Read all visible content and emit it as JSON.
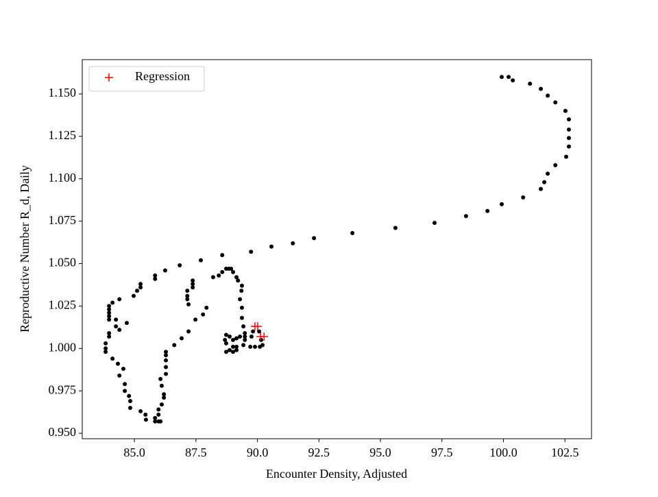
{
  "chart_data": {
    "type": "scatter",
    "xlabel": "Encounter Density, Adjusted",
    "ylabel": "Reproductive Number R_d, Daily",
    "xlim": [
      82.88,
      103.58
    ],
    "ylim": [
      0.9468,
      1.1702
    ],
    "xticks": [
      {
        "value": 85,
        "label": "85.0"
      },
      87.5,
      {
        "value": 90,
        "label": "90.0"
      },
      92.5,
      {
        "value": 95,
        "label": "95.0"
      },
      97.5,
      {
        "value": 100,
        "label": "100.0"
      },
      102.5
    ],
    "yticks": [
      {
        "value": 0.95,
        "label": "0.950"
      },
      0.975,
      {
        "value": 1,
        "label": "1.000"
      },
      1.025,
      {
        "value": 1.05,
        "label": "1.050"
      },
      1.075,
      {
        "value": 1.1,
        "label": "1.100"
      },
      1.125,
      {
        "value": 1.15,
        "label": "1.150"
      }
    ],
    "legend": "upper left",
    "series": [
      {
        "color": "#000000",
        "marker": "dot",
        "x": [
          99.93,
          100.21,
          100.38,
          101.08,
          101.52,
          101.8,
          102.11,
          102.52,
          102.66,
          102.66,
          102.66,
          102.66,
          102.55,
          102.11,
          101.8,
          101.66,
          101.52,
          100.8,
          99.93,
          99.35,
          98.48,
          97.2,
          95.61,
          93.86,
          92.3,
          91.44,
          90.57,
          89.74,
          88.57,
          87.7,
          86.84,
          86.25,
          85.84,
          85.84,
          85.25,
          85.25,
          85.11,
          84.97,
          84.39,
          84.11,
          83.97,
          83.97,
          83.97,
          83.97,
          83.97,
          84.25,
          84.69,
          84.39,
          84.25,
          83.97,
          83.97,
          83.83,
          83.83,
          83.83,
          84.11,
          84.33,
          84.55,
          84.39,
          84.61,
          84.61,
          84.78,
          84.83,
          84.83,
          85.25,
          85.45,
          85.47,
          85.84,
          85.84,
          85.98,
          86.06,
          85.98,
          85.98,
          86.11,
          86.2,
          86.2,
          86.11,
          86.06,
          86.28,
          86.28,
          86.28,
          86.28,
          86.28,
          86.62,
          86.92,
          87.2,
          87.48,
          87.79,
          87.93,
          87.2,
          87.15,
          87.15,
          87.15,
          87.37,
          87.37,
          87.37,
          88.2,
          88.43,
          88.57,
          88.73,
          88.84,
          88.93,
          89.01,
          89.15,
          89.21,
          89.37,
          89.35,
          89.29,
          89.37,
          89.37,
          89.43,
          89.49,
          89.49,
          89.43,
          89.71,
          89.9,
          90.1,
          90.21,
          90.15,
          90.07,
          89.82,
          89.76,
          89.49,
          89.29,
          89.15,
          89.01,
          88.87,
          88.73,
          88.68,
          88.73,
          88.87,
          89.01,
          89.15,
          89.15,
          89.01,
          88.73
        ],
        "values": [
          1.16,
          1.16,
          1.158,
          1.156,
          1.153,
          1.149,
          1.145,
          1.14,
          1.135,
          1.129,
          1.124,
          1.119,
          1.113,
          1.108,
          1.103,
          1.098,
          1.094,
          1.089,
          1.085,
          1.081,
          1.078,
          1.074,
          1.071,
          1.068,
          1.065,
          1.062,
          1.06,
          1.057,
          1.055,
          1.052,
          1.049,
          1.046,
          1.043,
          1.041,
          1.038,
          1.036,
          1.034,
          1.031,
          1.029,
          1.027,
          1.025,
          1.023,
          1.021,
          1.019,
          1.017,
          1.017,
          1.015,
          1.011,
          1.013,
          1.009,
          1.007,
          1.003,
          1.0,
          0.998,
          0.994,
          0.991,
          0.988,
          0.984,
          0.979,
          0.975,
          0.972,
          0.969,
          0.965,
          0.963,
          0.961,
          0.958,
          0.959,
          0.957,
          0.957,
          0.957,
          0.961,
          0.964,
          0.967,
          0.971,
          0.973,
          0.978,
          0.982,
          0.985,
          0.989,
          0.993,
          0.996,
          0.998,
          1.002,
          1.006,
          1.01,
          1.017,
          1.02,
          1.024,
          1.026,
          1.029,
          1.031,
          1.034,
          1.036,
          1.038,
          1.04,
          1.042,
          1.043,
          1.045,
          1.047,
          1.047,
          1.047,
          1.045,
          1.042,
          1.04,
          1.037,
          1.034,
          1.029,
          1.024,
          1.018,
          1.013,
          1.009,
          1.005,
          1.002,
          1.001,
          1.001,
          1.001,
          1.002,
          1.005,
          1.01,
          1.01,
          1.007,
          1.007,
          1.007,
          1.006,
          1.005,
          1.007,
          1.008,
          1.005,
          1.003,
          0.999,
          1.001,
          1.001,
          0.999,
          0.998,
          0.998
        ]
      },
      {
        "name": "Regression",
        "color": "#ff0000",
        "marker": "plus",
        "x": [
          89.9,
          90.01,
          90.13,
          90.27
        ],
        "values": [
          1.013,
          1.013,
          1.007,
          1.007
        ]
      }
    ]
  }
}
